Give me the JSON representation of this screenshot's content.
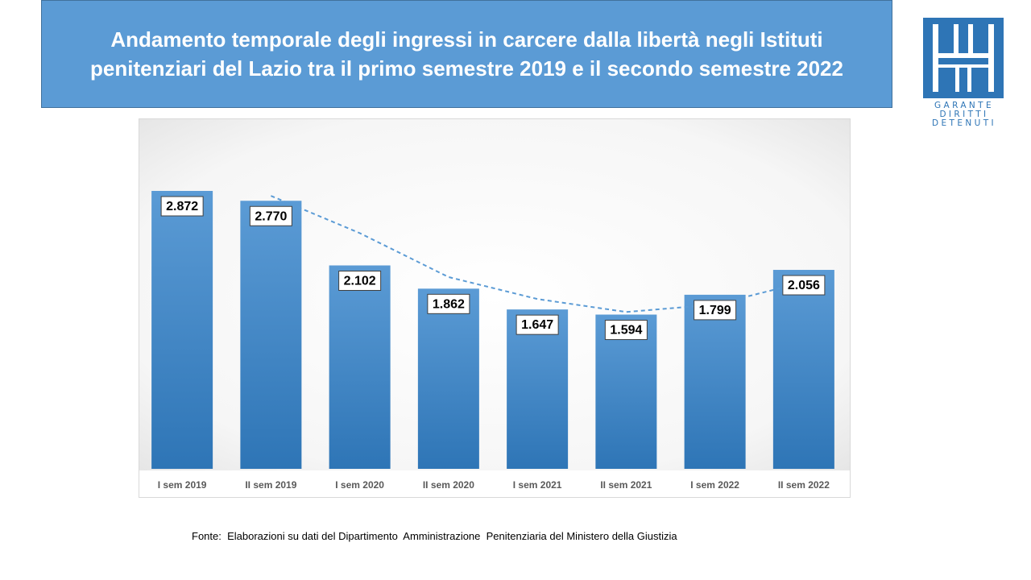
{
  "title": {
    "line1": "Andamento temporale degli ingressi in carcere dalla libertà negli Istituti",
    "line2": "penitenziari del Lazio tra il primo semestre 2019 e il secondo semestre 2022"
  },
  "logo": {
    "line1": "GARANTE",
    "line2": "DIRITTI",
    "line3": "DETENUTI"
  },
  "source": "Fonte:  Elaborazioni su dati del Dipartimento  Amministrazione  Penitenziaria del Ministero della Giustizia",
  "colors": {
    "banner": "#5b9bd5",
    "bar_top": "#5b9bd5",
    "bar_bottom": "#2e75b6",
    "trendline": "#5b9bd5",
    "logo": "#2e75b6"
  },
  "chart_data": {
    "type": "bar",
    "categories": [
      "I sem 2019",
      "II sem 2019",
      "I sem 2020",
      "II sem 2020",
      "I sem 2021",
      "II sem 2021",
      "I sem 2022",
      "II sem 2022"
    ],
    "values": [
      2872,
      2770,
      2102,
      1862,
      1647,
      1594,
      1799,
      2056
    ],
    "data_labels": [
      "2.872",
      "2.770",
      "2.102",
      "1.862",
      "1.647",
      "1.594",
      "1.799",
      "2.056"
    ],
    "trendline": {
      "type": "moving_average",
      "period": 2,
      "style": "dashed",
      "values": [
        null,
        2821,
        2436,
        1982,
        1755,
        1621,
        1697,
        1928
      ]
    },
    "ylim": [
      0,
      2872
    ],
    "grid": false,
    "legend": "none"
  }
}
